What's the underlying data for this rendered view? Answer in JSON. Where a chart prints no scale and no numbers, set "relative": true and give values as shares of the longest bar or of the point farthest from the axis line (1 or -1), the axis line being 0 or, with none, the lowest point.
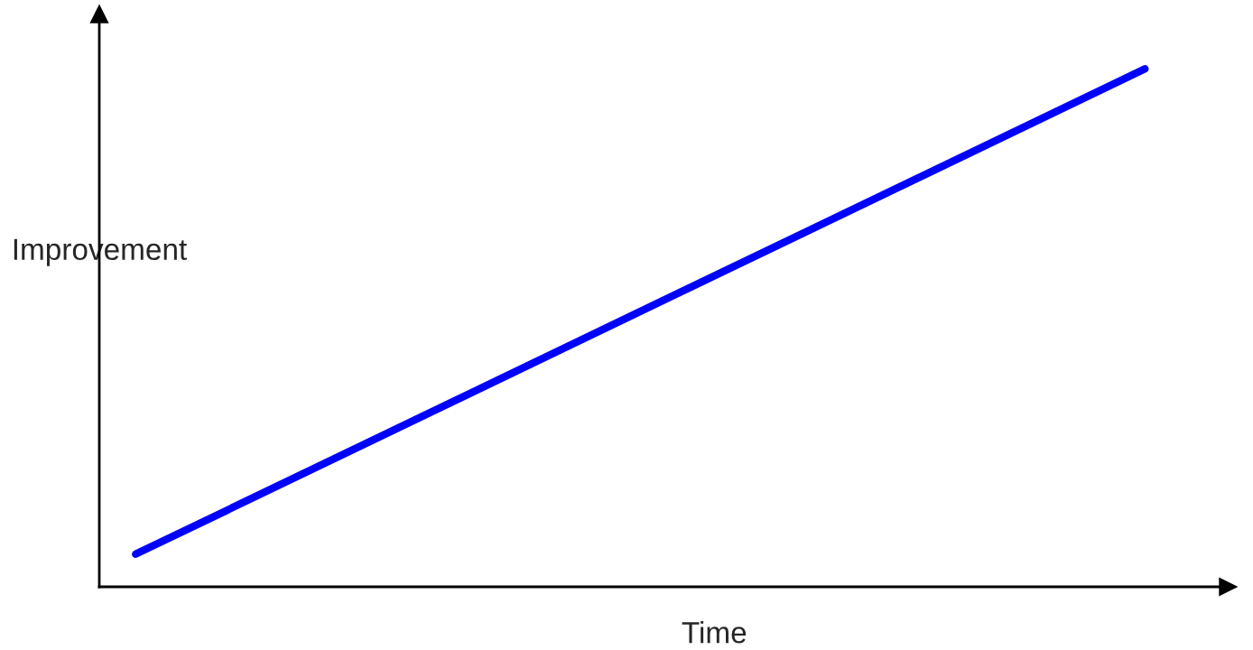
{
  "chart_data": {
    "type": "line",
    "relative": true,
    "xlabel": "Time",
    "ylabel": "Improvement",
    "categories": [
      null,
      null
    ],
    "series": [
      {
        "color": "#0000ff",
        "values": [
          0.063,
          1
        ]
      }
    ],
    "marker": "none",
    "line_style": "solid",
    "legend": false
  }
}
